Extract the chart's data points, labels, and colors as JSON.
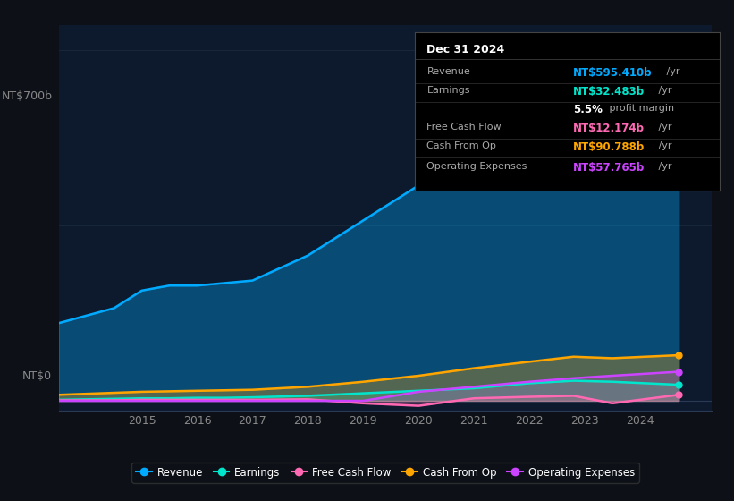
{
  "background_color": "#0d1117",
  "plot_bg_color": "#0d1a2e",
  "ylabel": "NT$700b",
  "ylabel_zero": "NT$0",
  "ylim": [
    -20,
    750
  ],
  "xlim": [
    2013.5,
    2025.3
  ],
  "series": {
    "Revenue": {
      "color": "#00aaff",
      "fill_alpha": 0.35,
      "values": [
        155,
        170,
        185,
        220,
        230,
        230,
        235,
        240,
        290,
        360,
        430,
        510,
        620,
        670,
        610,
        595
      ],
      "years": [
        2013.5,
        2014.0,
        2014.5,
        2015.0,
        2015.5,
        2016.0,
        2016.5,
        2017.0,
        2018.0,
        2019.0,
        2020.0,
        2021.0,
        2022.0,
        2022.8,
        2023.5,
        2024.7
      ]
    },
    "Earnings": {
      "color": "#00e5cc",
      "fill_alpha": 0.25,
      "values": [
        2,
        3,
        4,
        5,
        5,
        6,
        6,
        7,
        10,
        15,
        20,
        25,
        35,
        40,
        38,
        32
      ],
      "years": [
        2013.5,
        2014.0,
        2014.5,
        2015.0,
        2015.5,
        2016.0,
        2016.5,
        2017.0,
        2018.0,
        2019.0,
        2020.0,
        2021.0,
        2022.0,
        2022.8,
        2023.5,
        2024.7
      ]
    },
    "Free Cash Flow": {
      "color": "#ff69b4",
      "fill_alpha": 0.2,
      "values": [
        1,
        1,
        1,
        2,
        2,
        2,
        2,
        2,
        3,
        -5,
        -10,
        5,
        8,
        10,
        -5,
        12
      ],
      "years": [
        2013.5,
        2014.0,
        2014.5,
        2015.0,
        2015.5,
        2016.0,
        2016.5,
        2017.0,
        2018.0,
        2019.0,
        2020.0,
        2021.0,
        2022.0,
        2022.8,
        2023.5,
        2024.7
      ]
    },
    "Cash From Op": {
      "color": "#ffa500",
      "fill_alpha": 0.3,
      "values": [
        12,
        14,
        16,
        18,
        19,
        20,
        21,
        22,
        28,
        38,
        50,
        65,
        78,
        88,
        85,
        91
      ],
      "years": [
        2013.5,
        2014.0,
        2014.5,
        2015.0,
        2015.5,
        2016.0,
        2016.5,
        2017.0,
        2018.0,
        2019.0,
        2020.0,
        2021.0,
        2022.0,
        2022.8,
        2023.5,
        2024.7
      ]
    },
    "Operating Expenses": {
      "color": "#cc44ff",
      "fill_alpha": 0.2,
      "values": [
        0,
        0,
        0,
        0,
        0,
        0,
        0,
        0,
        0,
        0,
        18,
        28,
        38,
        45,
        50,
        58
      ],
      "years": [
        2013.5,
        2014.0,
        2014.5,
        2015.0,
        2015.5,
        2016.0,
        2016.5,
        2017.0,
        2018.0,
        2019.0,
        2020.0,
        2021.0,
        2022.0,
        2022.8,
        2023.5,
        2024.7
      ]
    }
  },
  "info_box": {
    "title": "Dec 31 2024",
    "rows": [
      {
        "label": "Revenue",
        "value": "NT$595.410b",
        "unit": " /yr",
        "color": "#00aaff",
        "bold": true
      },
      {
        "label": "Earnings",
        "value": "NT$32.483b",
        "unit": " /yr",
        "color": "#00e5cc",
        "bold": true
      },
      {
        "label": "",
        "value": "5.5%",
        "unit": " profit margin",
        "color": "#ffffff",
        "bold": true
      },
      {
        "label": "Free Cash Flow",
        "value": "NT$12.174b",
        "unit": " /yr",
        "color": "#ff69b4",
        "bold": true
      },
      {
        "label": "Cash From Op",
        "value": "NT$90.788b",
        "unit": " /yr",
        "color": "#ffa500",
        "bold": true
      },
      {
        "label": "Operating Expenses",
        "value": "NT$57.765b",
        "unit": " /yr",
        "color": "#cc44ff",
        "bold": true
      }
    ]
  },
  "xticks": [
    2015,
    2016,
    2017,
    2018,
    2019,
    2020,
    2021,
    2022,
    2023,
    2024
  ],
  "legend": [
    {
      "label": "Revenue",
      "color": "#00aaff"
    },
    {
      "label": "Earnings",
      "color": "#00e5cc"
    },
    {
      "label": "Free Cash Flow",
      "color": "#ff69b4"
    },
    {
      "label": "Cash From Op",
      "color": "#ffa500"
    },
    {
      "label": "Operating Expenses",
      "color": "#cc44ff"
    }
  ]
}
